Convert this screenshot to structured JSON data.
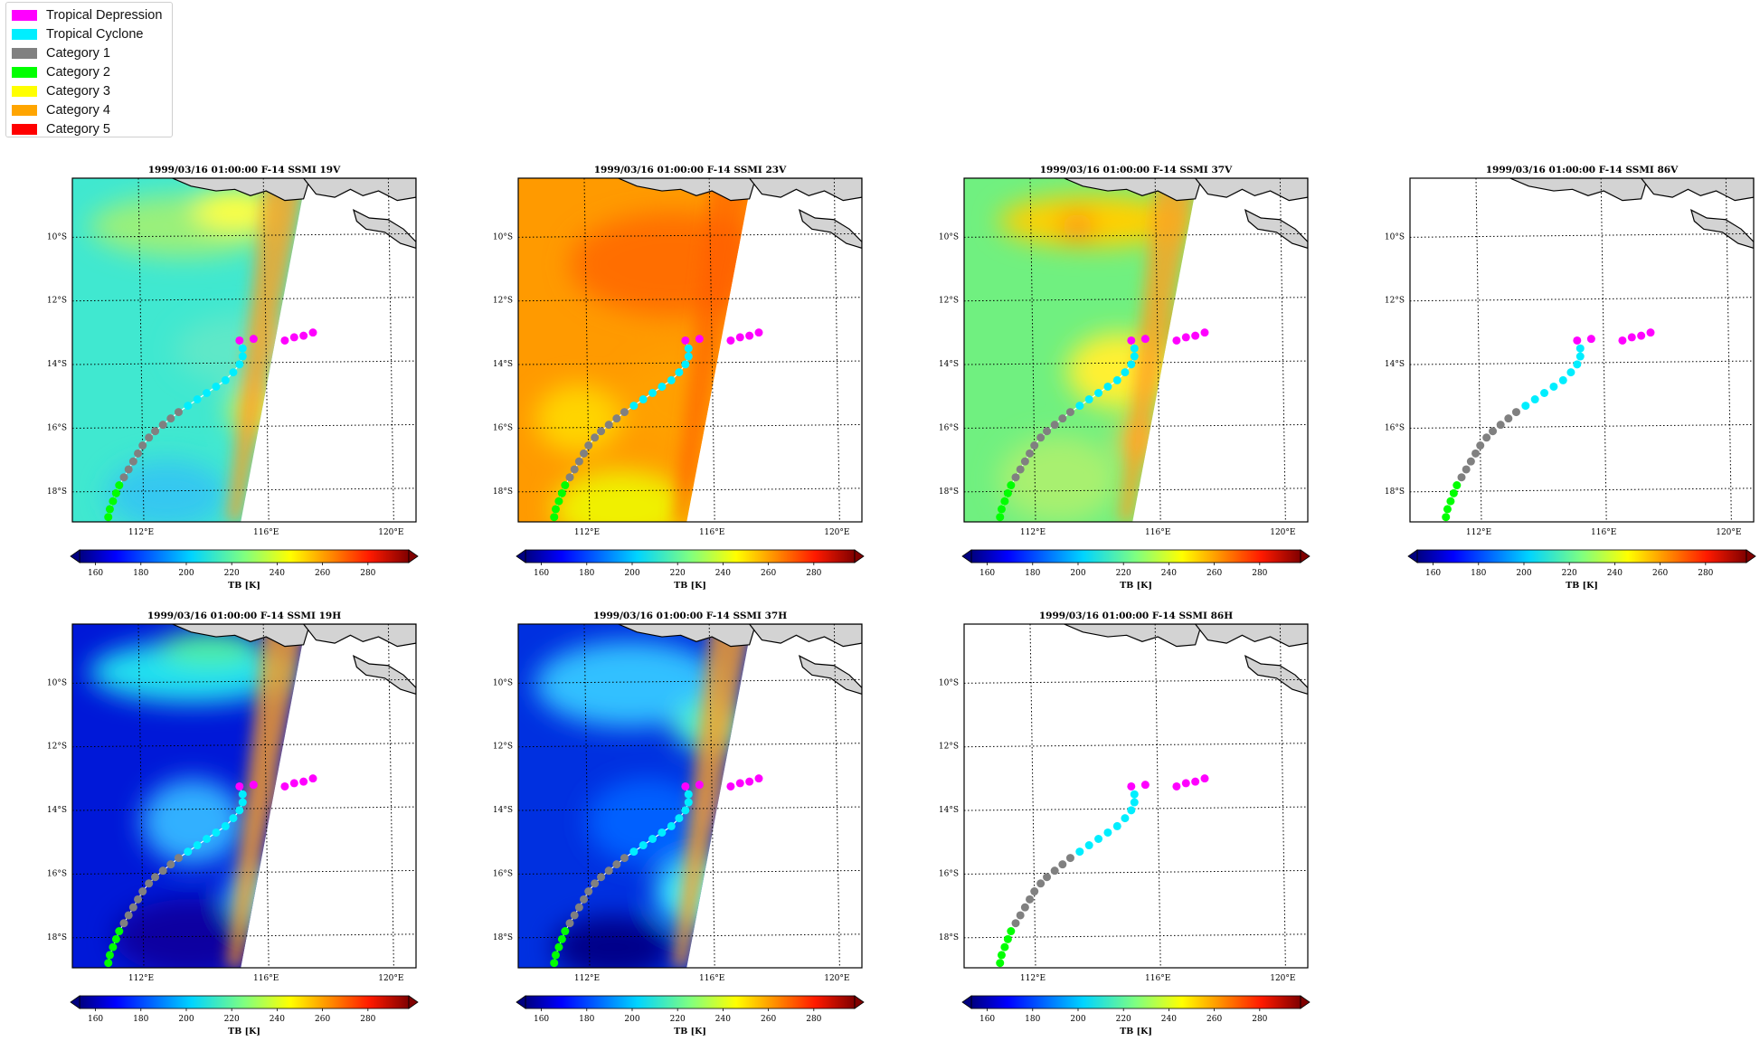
{
  "legend": {
    "items": [
      {
        "label": "Tropical Depression",
        "color": "#ff00ff"
      },
      {
        "label": "Tropical Cyclone",
        "color": "#00eeff"
      },
      {
        "label": "Category 1",
        "color": "#808080"
      },
      {
        "label": "Category 2",
        "color": "#00ff00"
      },
      {
        "label": "Category 3",
        "color": "#ffff00"
      },
      {
        "label": "Category 4",
        "color": "#ffa500"
      },
      {
        "label": "Category 5",
        "color": "#ff0000"
      }
    ]
  },
  "chart_data": [
    {
      "type": "heatmap",
      "title": "1999/03/16 01:00:00  F-14 SSMI 19V",
      "base_color": "#40e8d0",
      "has_swath": true,
      "colorbar_label": "TB [K]"
    },
    {
      "type": "heatmap",
      "title": "1999/03/16 01:00:00  F-14 SSMI 23V",
      "base_color": "#ff9a00",
      "has_swath": true,
      "colorbar_label": "TB [K]"
    },
    {
      "type": "heatmap",
      "title": "1999/03/16 01:00:00  F-14 SSMI 37V",
      "base_color": "#70f080",
      "has_swath": true,
      "colorbar_label": "TB [K]"
    },
    {
      "type": "heatmap",
      "title": "1999/03/16 01:00:00  F-14 SSMI 86V",
      "base_color": "#ffffff",
      "has_swath": false,
      "colorbar_label": "TB [K]"
    },
    {
      "type": "heatmap",
      "title": "1999/03/16 01:00:00  F-14 SSMI 19H",
      "base_color": "#0018d8",
      "has_swath": true,
      "colorbar_label": "TB [K]"
    },
    {
      "type": "heatmap",
      "title": "1999/03/16 01:00:00  F-14 SSMI 37H",
      "base_color": "#0030e0",
      "has_swath": true,
      "colorbar_label": "TB [K]"
    },
    {
      "type": "heatmap",
      "title": "1999/03/16 01:00:00  F-14 SSMI 86H",
      "base_color": "#ffffff",
      "has_swath": false,
      "colorbar_label": "TB [K]"
    }
  ],
  "map": {
    "lat_labels": [
      "10°S",
      "12°S",
      "14°S",
      "16°S",
      "18°S"
    ],
    "lat_values": [
      -10,
      -12,
      -14,
      -16,
      -18
    ],
    "lon_labels": [
      "112°E",
      "116°E",
      "120°E"
    ],
    "lon_values": [
      112,
      116,
      120
    ],
    "lon_range": [
      109.8,
      120.8
    ],
    "lat_range": [
      -19.0,
      -8.2
    ]
  },
  "colorbar": {
    "ticks": [
      "160",
      "180",
      "200",
      "220",
      "240",
      "260",
      "280"
    ],
    "tick_values": [
      160,
      180,
      200,
      220,
      240,
      260,
      280
    ],
    "range": [
      153,
      298
    ],
    "label": "TB [K]"
  },
  "track": [
    {
      "lon": 110.95,
      "lat": -18.85,
      "cat": "Category 2"
    },
    {
      "lon": 111.0,
      "lat": -18.6,
      "cat": "Category 2"
    },
    {
      "lon": 111.1,
      "lat": -18.35,
      "cat": "Category 2"
    },
    {
      "lon": 111.2,
      "lat": -18.1,
      "cat": "Category 2"
    },
    {
      "lon": 111.3,
      "lat": -17.85,
      "cat": "Category 2"
    },
    {
      "lon": 111.45,
      "lat": -17.6,
      "cat": "Category 1"
    },
    {
      "lon": 111.6,
      "lat": -17.35,
      "cat": "Category 1"
    },
    {
      "lon": 111.75,
      "lat": -17.1,
      "cat": "Category 1"
    },
    {
      "lon": 111.9,
      "lat": -16.85,
      "cat": "Category 1"
    },
    {
      "lon": 112.05,
      "lat": -16.6,
      "cat": "Category 1"
    },
    {
      "lon": 112.25,
      "lat": -16.35,
      "cat": "Category 1"
    },
    {
      "lon": 112.45,
      "lat": -16.15,
      "cat": "Category 1"
    },
    {
      "lon": 112.7,
      "lat": -15.95,
      "cat": "Category 1"
    },
    {
      "lon": 112.95,
      "lat": -15.75,
      "cat": "Category 1"
    },
    {
      "lon": 113.2,
      "lat": -15.55,
      "cat": "Category 1"
    },
    {
      "lon": 113.5,
      "lat": -15.35,
      "cat": "Tropical Cyclone"
    },
    {
      "lon": 113.8,
      "lat": -15.15,
      "cat": "Tropical Cyclone"
    },
    {
      "lon": 114.1,
      "lat": -14.95,
      "cat": "Tropical Cyclone"
    },
    {
      "lon": 114.4,
      "lat": -14.75,
      "cat": "Tropical Cyclone"
    },
    {
      "lon": 114.7,
      "lat": -14.55,
      "cat": "Tropical Cyclone"
    },
    {
      "lon": 114.95,
      "lat": -14.3,
      "cat": "Tropical Cyclone"
    },
    {
      "lon": 115.15,
      "lat": -14.05,
      "cat": "Tropical Cyclone"
    },
    {
      "lon": 115.25,
      "lat": -13.8,
      "cat": "Tropical Cyclone"
    },
    {
      "lon": 115.25,
      "lat": -13.55,
      "cat": "Tropical Cyclone"
    },
    {
      "lon": 115.15,
      "lat": -13.3,
      "cat": "Tropical Depression"
    },
    {
      "lon": 115.6,
      "lat": -13.25,
      "cat": "Tropical Depression"
    },
    {
      "lon": 116.6,
      "lat": -13.3,
      "cat": "Tropical Depression"
    },
    {
      "lon": 116.9,
      "lat": -13.2,
      "cat": "Tropical Depression"
    },
    {
      "lon": 117.2,
      "lat": -13.15,
      "cat": "Tropical Depression"
    },
    {
      "lon": 117.5,
      "lat": -13.05,
      "cat": "Tropical Depression"
    }
  ]
}
